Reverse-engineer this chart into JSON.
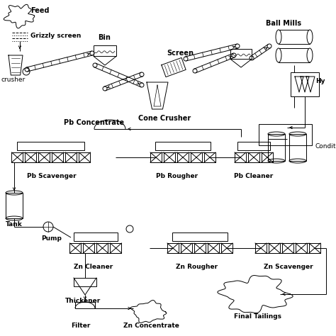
{
  "background_color": "#ffffff",
  "line_color": "#000000",
  "labels": {
    "feed": "Feed",
    "grizzly": "Grizzly screen",
    "bin": "Bin",
    "screen": "Screen",
    "ball_mills": "Ball Mills",
    "cone_crusher": "Cone Crusher",
    "jaw_crusher": "crusher",
    "hydro": "Hy",
    "pb_concentrate": "Pb Concentrate",
    "conditioning": "Condition.",
    "pb_scavenger": "Pb Scavenger",
    "pb_rougher": "Pb Rougher",
    "pb_cleaner": "Pb Cleaner",
    "tank": "Tank",
    "pump": "Pump",
    "zn_cleaner": "Zn Cleaner",
    "zn_rougher": "Zn Rougher",
    "zn_scavenger": "Zn Scavenger",
    "thickener": "Thickener",
    "filter": "Filter",
    "zn_concentrate": "Zn Concentrate",
    "final_tailings": "Final Tailings"
  },
  "fig_w": 4.74,
  "fig_h": 4.74,
  "dpi": 100
}
